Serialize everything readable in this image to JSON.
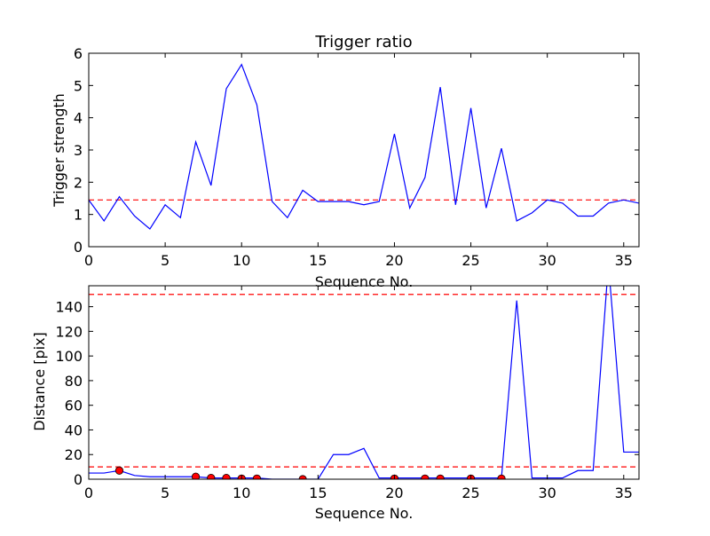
{
  "chart_data": [
    {
      "type": "line",
      "title": "Trigger ratio",
      "xlabel": "Sequence No.",
      "ylabel": "Trigger strength",
      "xlim": [
        0,
        36
      ],
      "ylim": [
        0,
        6
      ],
      "xticks": [
        0,
        5,
        10,
        15,
        20,
        25,
        30,
        35
      ],
      "yticks": [
        0,
        1,
        2,
        3,
        4,
        5,
        6
      ],
      "series": [
        {
          "color": "#0000ff",
          "x": [
            0,
            1,
            2,
            3,
            4,
            5,
            6,
            7,
            8,
            9,
            10,
            11,
            12,
            13,
            14,
            15,
            16,
            17,
            18,
            19,
            20,
            21,
            22,
            23,
            24,
            25,
            26,
            27,
            28,
            29,
            30,
            31,
            32,
            33,
            34,
            35,
            36
          ],
          "values": [
            1.45,
            0.8,
            1.55,
            0.95,
            0.55,
            1.3,
            0.9,
            3.25,
            1.9,
            4.9,
            5.65,
            4.4,
            1.4,
            0.9,
            1.75,
            1.4,
            1.4,
            1.4,
            1.3,
            1.4,
            3.5,
            1.2,
            2.15,
            4.95,
            1.3,
            4.3,
            1.2,
            3.05,
            0.8,
            1.05,
            1.45,
            1.35,
            0.95,
            0.95,
            1.35,
            1.45,
            1.35
          ]
        }
      ],
      "threshold": {
        "value": 1.45,
        "color": "#ff0000",
        "style": "dashed"
      },
      "grid": false
    },
    {
      "type": "line",
      "title": "",
      "xlabel": "Sequence No.",
      "ylabel": "Distance [pix]",
      "xlim": [
        0,
        36
      ],
      "ylim": [
        0,
        157
      ],
      "xticks": [
        0,
        5,
        10,
        15,
        20,
        25,
        30,
        35
      ],
      "yticks": [
        0,
        20,
        40,
        60,
        80,
        100,
        120,
        140
      ],
      "series": [
        {
          "color": "#0000ff",
          "x": [
            0,
            1,
            2,
            3,
            4,
            5,
            6,
            7,
            8,
            9,
            10,
            11,
            12,
            13,
            14,
            15,
            16,
            17,
            18,
            19,
            20,
            21,
            22,
            23,
            24,
            25,
            26,
            27,
            28,
            29,
            30,
            31,
            32,
            33,
            34,
            35,
            36
          ],
          "values": [
            5,
            5,
            7,
            3,
            2,
            2,
            2,
            2,
            1,
            1,
            1,
            1,
            0,
            0,
            0,
            0,
            20,
            20,
            25,
            1,
            1,
            1,
            1,
            1,
            1,
            1,
            1,
            1,
            145,
            1,
            1,
            1,
            7,
            7,
            175,
            22,
            22
          ]
        }
      ],
      "markers": {
        "color": "#ff0000",
        "x": [
          2,
          7,
          8,
          9,
          10,
          11,
          14,
          20,
          22,
          23,
          25,
          27
        ],
        "values": [
          7,
          2,
          1,
          1,
          0.5,
          0.5,
          0,
          0.5,
          0.5,
          0.5,
          0.5,
          0.5
        ]
      },
      "thresholds": [
        {
          "value": 150,
          "color": "#ff0000",
          "style": "dashed"
        },
        {
          "value": 10,
          "color": "#ff0000",
          "style": "dashed"
        }
      ],
      "grid": false
    }
  ]
}
